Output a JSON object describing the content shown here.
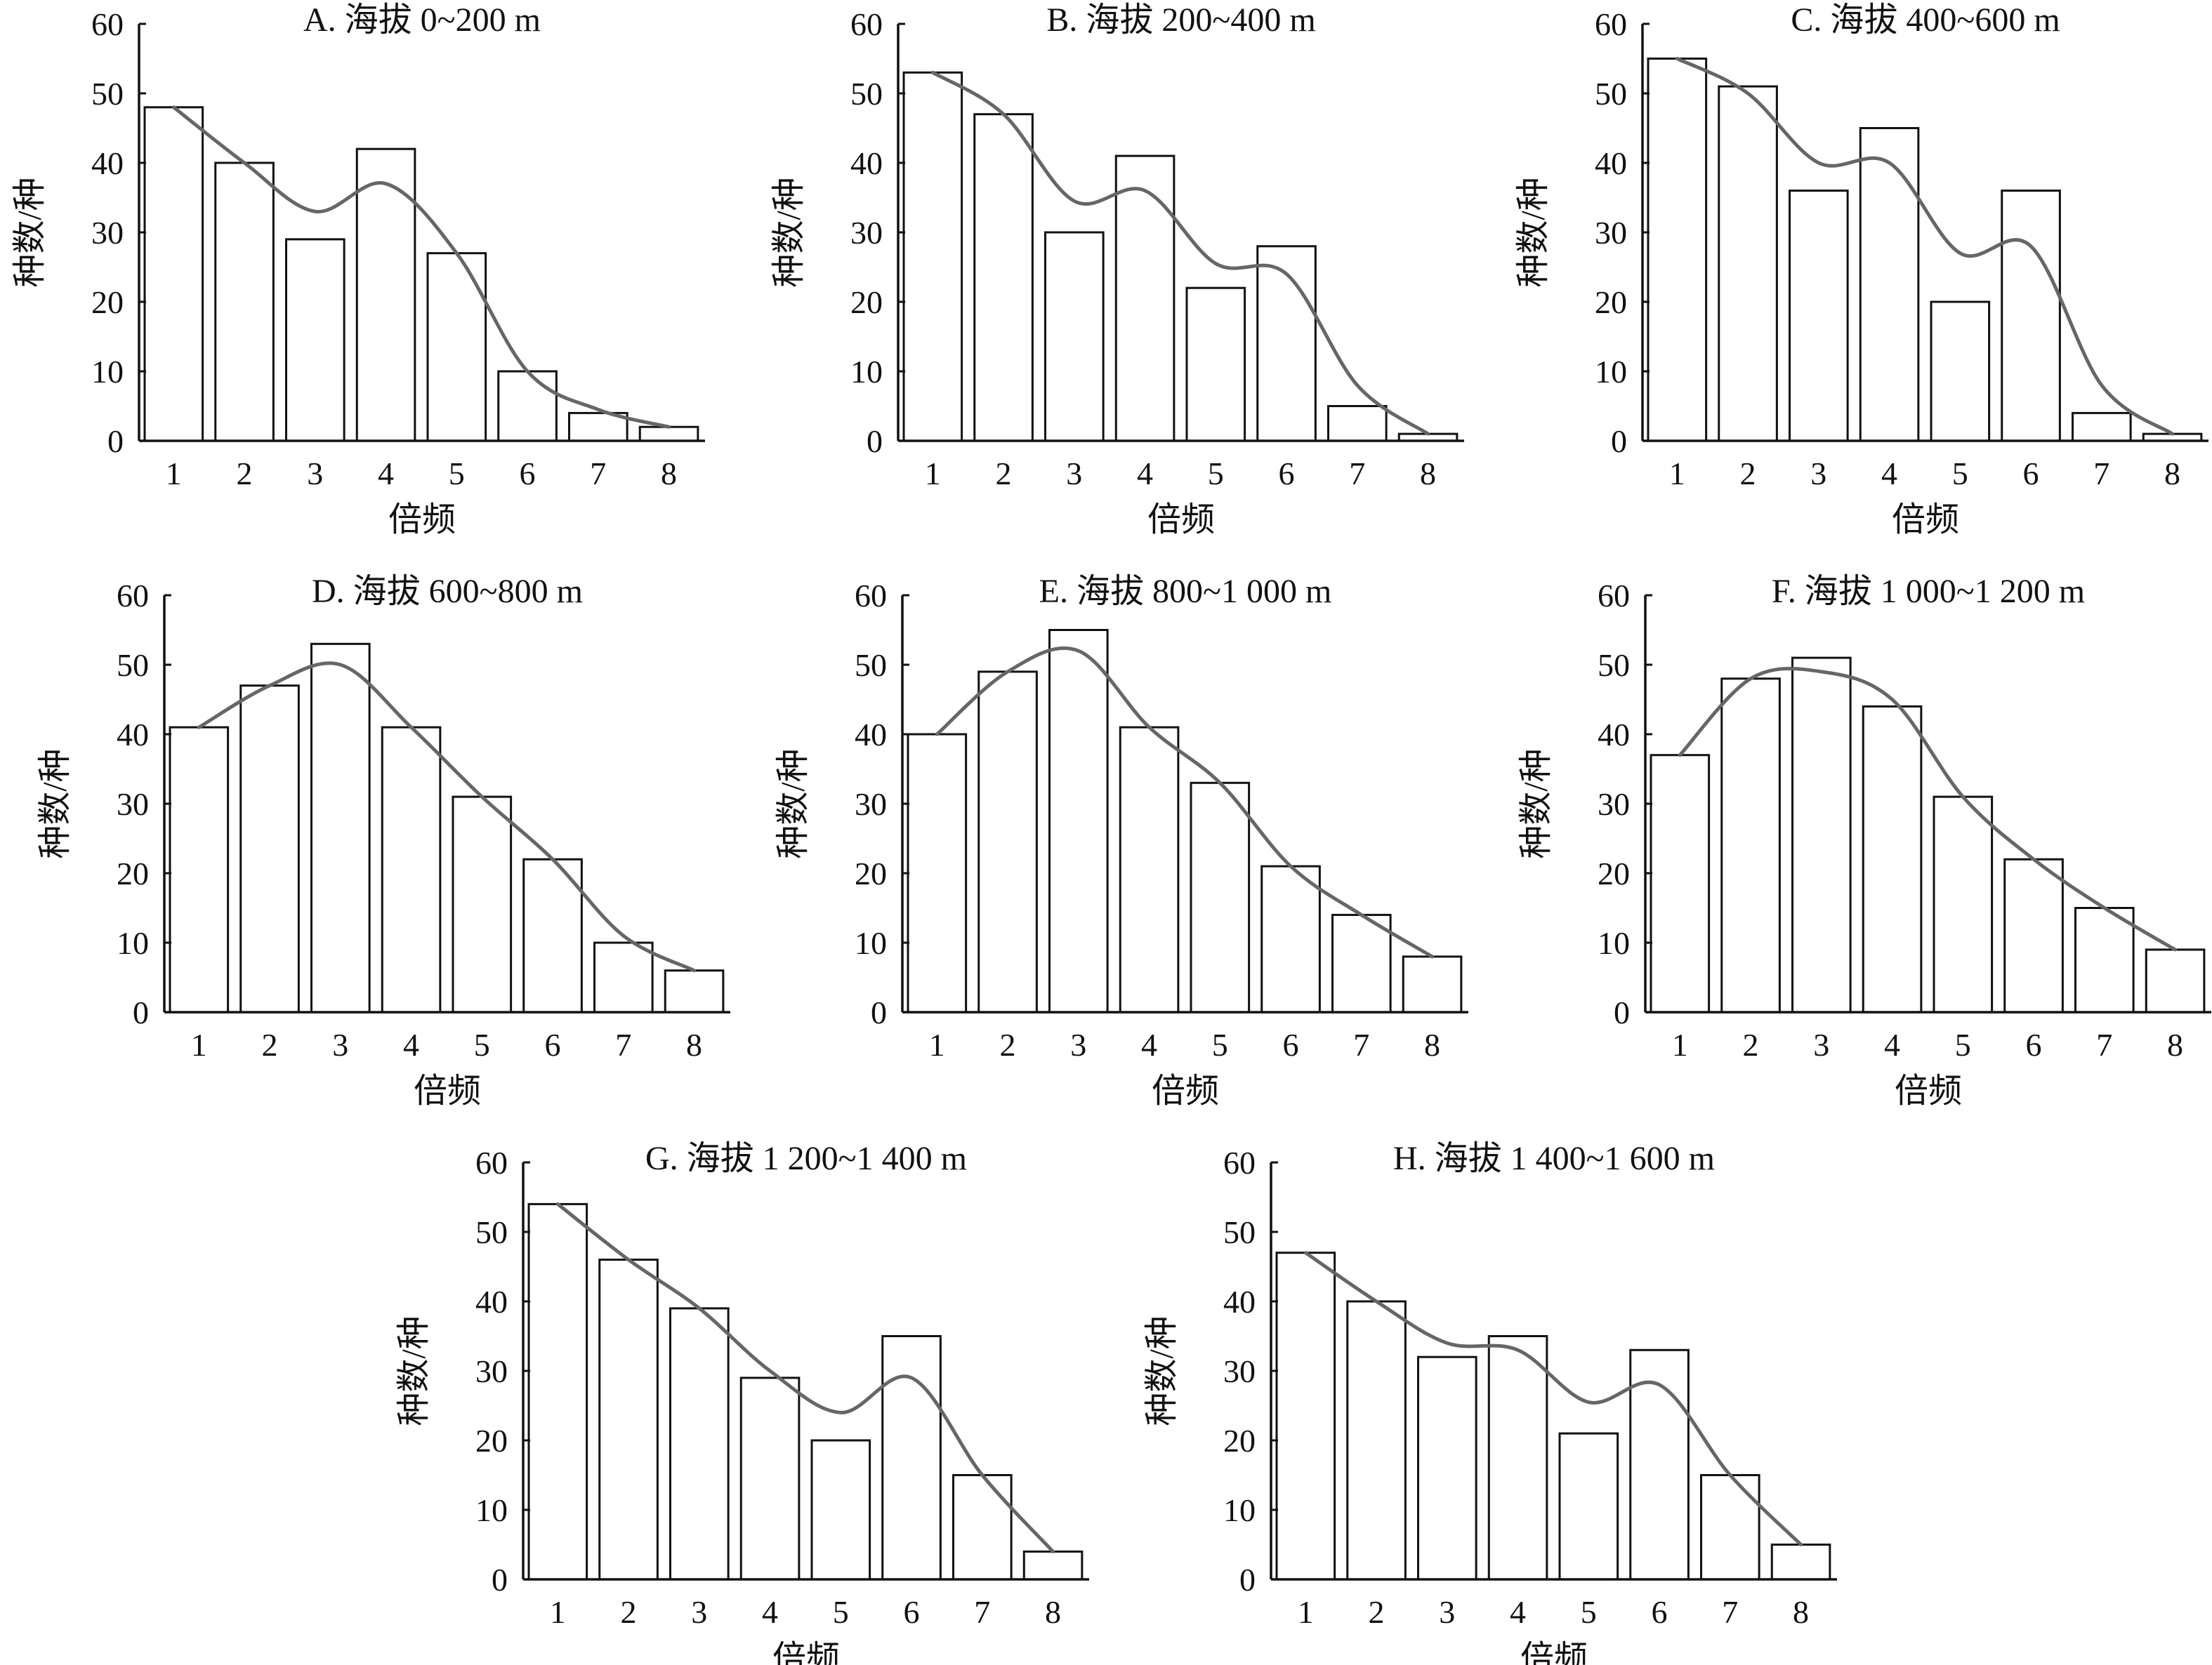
{
  "colors": {
    "bar_fill": "#ffffff",
    "bar_stroke": "#111111",
    "curve": "#666666",
    "axis": "#111111"
  },
  "chart_data": [
    {
      "type": "bar",
      "title": "A. 海拔 0~200 m",
      "xlabel": "倍频",
      "ylabel": "种数/种",
      "ylim": [
        0,
        60
      ],
      "yticks": [
        0,
        10,
        20,
        30,
        40,
        50,
        60
      ],
      "categories": [
        "1",
        "2",
        "3",
        "4",
        "5",
        "6",
        "7",
        "8"
      ],
      "values": [
        48,
        40,
        29,
        42,
        27,
        10,
        4,
        2
      ],
      "trend_curve": [
        48,
        40,
        33,
        37,
        27,
        10,
        4.5,
        2
      ],
      "grid": false
    },
    {
      "type": "bar",
      "title": "B. 海拔 200~400 m",
      "xlabel": "倍频",
      "ylabel": "种数/种",
      "ylim": [
        0,
        60
      ],
      "yticks": [
        0,
        10,
        20,
        30,
        40,
        50,
        60
      ],
      "categories": [
        "1",
        "2",
        "3",
        "4",
        "5",
        "6",
        "7",
        "8"
      ],
      "values": [
        53,
        47,
        30,
        41,
        22,
        28,
        5,
        1
      ],
      "trend_curve": [
        53,
        47,
        34.5,
        36,
        25.5,
        24,
        8,
        1
      ],
      "grid": false
    },
    {
      "type": "bar",
      "title": "C. 海拔 400~600 m",
      "xlabel": "倍频",
      "ylabel": "种数/种",
      "ylim": [
        0,
        60
      ],
      "yticks": [
        0,
        10,
        20,
        30,
        40,
        50,
        60
      ],
      "categories": [
        "1",
        "2",
        "3",
        "4",
        "5",
        "6",
        "7",
        "8"
      ],
      "values": [
        55,
        51,
        36,
        45,
        20,
        36,
        4,
        1
      ],
      "trend_curve": [
        55,
        50,
        40,
        40,
        27,
        28,
        8,
        1
      ],
      "grid": false
    },
    {
      "type": "bar",
      "title": "D. 海拔 600~800 m",
      "xlabel": "倍频",
      "ylabel": "种数/种",
      "ylim": [
        0,
        60
      ],
      "yticks": [
        0,
        10,
        20,
        30,
        40,
        50,
        60
      ],
      "categories": [
        "1",
        "2",
        "3",
        "4",
        "5",
        "6",
        "7",
        "8"
      ],
      "values": [
        41,
        47,
        53,
        41,
        31,
        22,
        10,
        6
      ],
      "trend_curve": [
        41,
        47,
        50,
        41,
        31,
        22,
        11,
        6
      ],
      "grid": false
    },
    {
      "type": "bar",
      "title": "E. 海拔 800~1 000 m",
      "xlabel": "倍频",
      "ylabel": "种数/种",
      "ylim": [
        0,
        60
      ],
      "yticks": [
        0,
        10,
        20,
        30,
        40,
        50,
        60
      ],
      "categories": [
        "1",
        "2",
        "3",
        "4",
        "5",
        "6",
        "7",
        "8"
      ],
      "values": [
        40,
        49,
        55,
        41,
        33,
        21,
        14,
        8
      ],
      "trend_curve": [
        40,
        49,
        52,
        41,
        33,
        21,
        14,
        8
      ],
      "grid": false
    },
    {
      "type": "bar",
      "title": "F. 海拔 1 000~1 200 m",
      "xlabel": "倍频",
      "ylabel": "种数/种",
      "ylim": [
        0,
        60
      ],
      "yticks": [
        0,
        10,
        20,
        30,
        40,
        50,
        60
      ],
      "categories": [
        "1",
        "2",
        "3",
        "4",
        "5",
        "6",
        "7",
        "8"
      ],
      "values": [
        37,
        48,
        51,
        44,
        31,
        22,
        15,
        9
      ],
      "trend_curve": [
        37,
        48,
        49,
        45,
        31,
        22,
        15,
        9
      ],
      "grid": false
    },
    {
      "type": "bar",
      "title": "G. 海拔 1 200~1 400 m",
      "xlabel": "倍频",
      "ylabel": "种数/种",
      "ylim": [
        0,
        60
      ],
      "yticks": [
        0,
        10,
        20,
        30,
        40,
        50,
        60
      ],
      "categories": [
        "1",
        "2",
        "3",
        "4",
        "5",
        "6",
        "7",
        "8"
      ],
      "values": [
        54,
        46,
        39,
        29,
        20,
        35,
        15,
        4
      ],
      "trend_curve": [
        54,
        46,
        39,
        30,
        24,
        29,
        15,
        4
      ],
      "grid": false
    },
    {
      "type": "bar",
      "title": "H. 海拔 1 400~1 600 m",
      "xlabel": "倍频",
      "ylabel": "种数/种",
      "ylim": [
        0,
        60
      ],
      "yticks": [
        0,
        10,
        20,
        30,
        40,
        50,
        60
      ],
      "categories": [
        "1",
        "2",
        "3",
        "4",
        "5",
        "6",
        "7",
        "8"
      ],
      "values": [
        47,
        40,
        32,
        35,
        21,
        33,
        15,
        5
      ],
      "trend_curve": [
        47,
        40,
        34,
        33,
        25.5,
        28,
        15,
        5
      ],
      "grid": false
    }
  ]
}
